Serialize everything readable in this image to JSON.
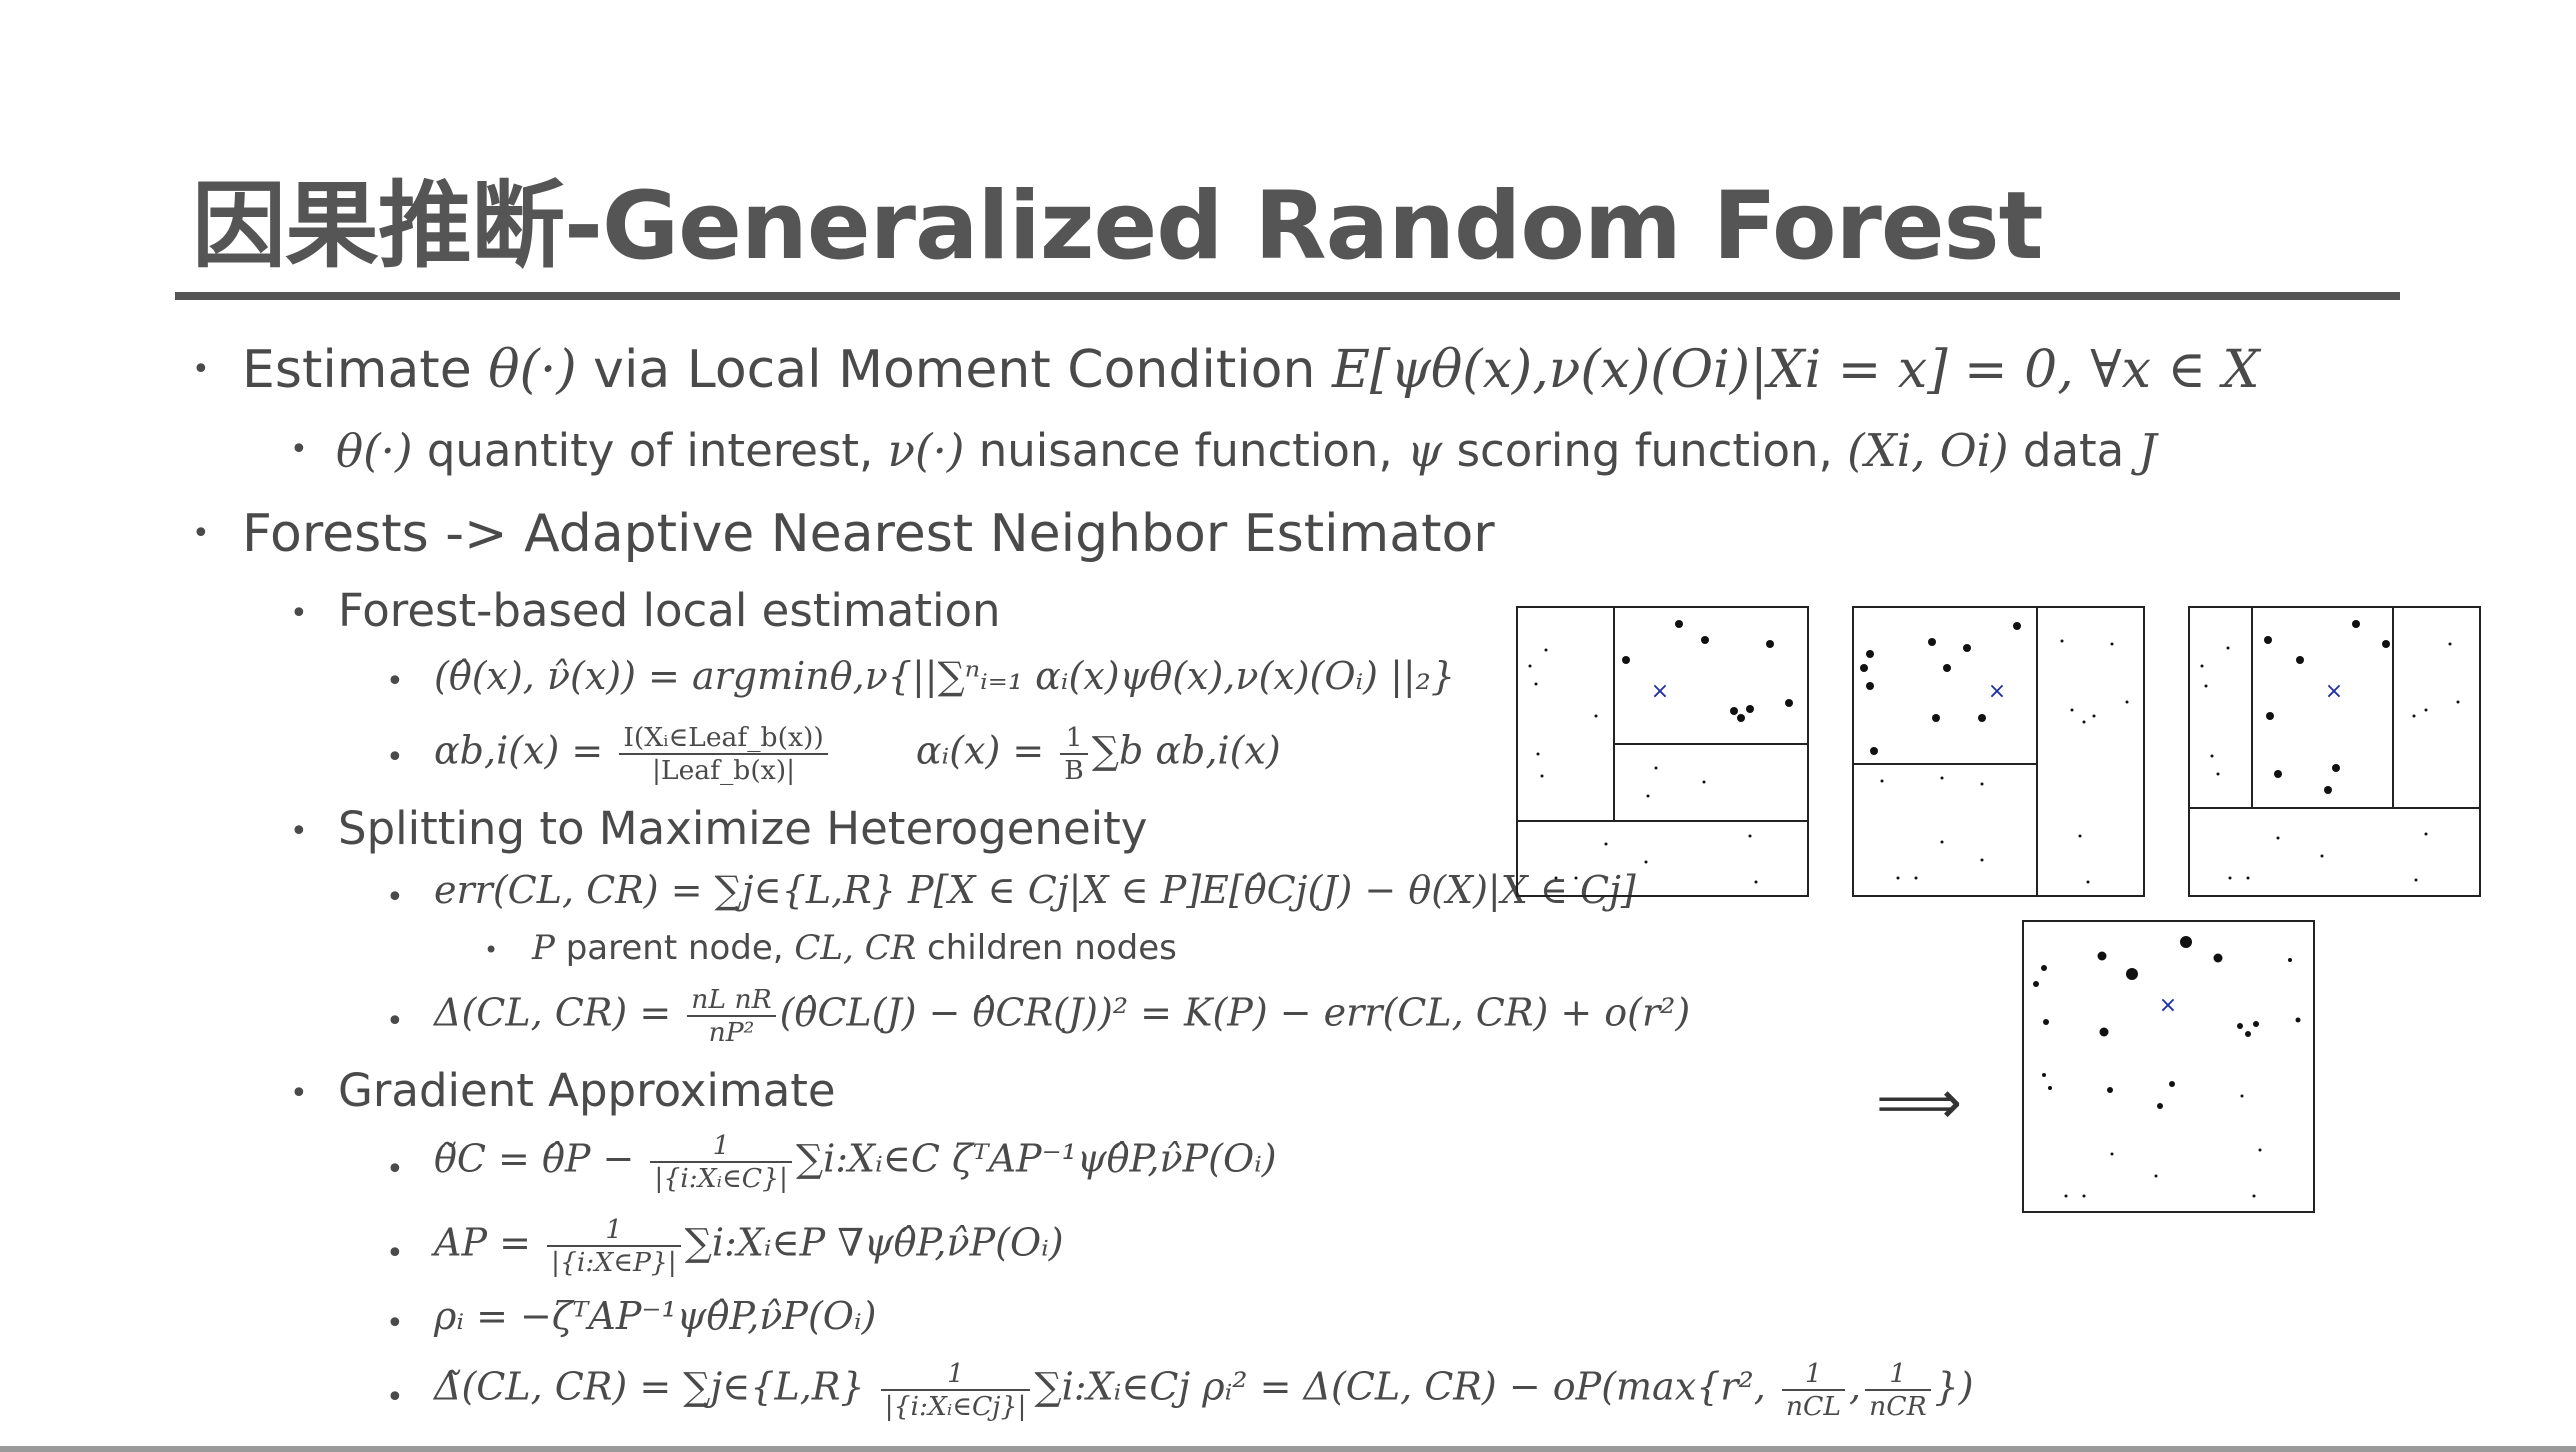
{
  "title": "因果推断-Generalized Random Forest",
  "b1": {
    "pre": "Estimate ",
    "theta": "θ(·)",
    "mid": " via Local Moment Condition ",
    "eq": "E[ψθ(x),ν(x)(Oi)|Xi = x] = 0, ∀x ∈ X"
  },
  "b1_sub": {
    "a": "θ(·)",
    "a_t": " quantity of interest, ",
    "b": "ν(·)",
    "b_t": " nuisance function, ",
    "c": "ψ",
    "c_t": " scoring function, ",
    "d": "(Xi, Oi)",
    "d_t": " data ",
    "e": "J"
  },
  "b2": "Forests -> Adaptive Nearest Neighbor Estimator",
  "s1": "Forest-based local estimation",
  "s1_eq1": "(θ̂(x), ν̂(x)) = argminθ,ν{||∑ⁿᵢ₌₁ αᵢ(x)ψθ(x),ν(x)(Oᵢ) ||₂}",
  "s1_eq2a_lhs": "αb,i(x) = ",
  "s1_eq2a_num": "I(Xᵢ∈Leaf_b(x))",
  "s1_eq2a_den": "|Leaf_b(x)|",
  "s1_eq2b_lhs": "αᵢ(x) = ",
  "s1_eq2b_num": "1",
  "s1_eq2b_den": "B",
  "s1_eq2b_rhs": "∑b αb,i(x)",
  "s2": "Splitting to Maximize Heterogeneity",
  "s2_eq1": "err(CL, CR) = ∑j∈{L,R} P[X ∈ Cj|X ∈ P]E[θ̂Cj(J) − θ(X)|X ∈ Cj]",
  "s2_sub": {
    "p": "P",
    "p_t": " parent node, ",
    "c": "CL, CR",
    "c_t": " children nodes"
  },
  "s2_eq2_lhs": "Δ(CL, CR) = ",
  "s2_eq2_num": "nL nR",
  "s2_eq2_den": "nP²",
  "s2_eq2_rhs": "(θ̂CL(J) − θ̂CR(J))² = K(P) − err(CL, CR) + o(r²)",
  "s3": "Gradient Approximate",
  "s3_eq1_lhs": "θ̃C = θ̂P − ",
  "s3_eq1_num": "1",
  "s3_eq1_den": "|{i:Xᵢ∈C}|",
  "s3_eq1_rhs": "∑i:Xᵢ∈C ζᵀAP⁻¹ψθ̂P,ν̂P(Oᵢ)",
  "s3_eq2_lhs": "AP = ",
  "s3_eq2_num": "1",
  "s3_eq2_den": "|{i:X∈P}|",
  "s3_eq2_rhs": "∑i:Xᵢ∈P ∇ψθ̂P,ν̂P(Oᵢ)",
  "s3_eq3": "ρᵢ = −ζᵀAP⁻¹ψθ̂P,ν̂P(Oᵢ)",
  "s3_eq4_lhs": "Δ̃(CL, CR) = ∑j∈{L,R} ",
  "s3_eq4_num": "1",
  "s3_eq4_den": "|{i:Xᵢ∈Cj}|",
  "s3_eq4_mid": "∑i:Xᵢ∈Cj ρᵢ² = Δ(CL, CR) − oP(max{r², ",
  "s3_eq4_n1": "1",
  "s3_eq4_d1": "nCL",
  "s3_eq4_n2": "1",
  "s3_eq4_d2": "nCR",
  "s3_eq4_end": "})",
  "arrow": "⟹",
  "marker": "×",
  "colors": {
    "text": "#4a4a4a",
    "title": "#555555",
    "marker": "#1f2fa8"
  }
}
